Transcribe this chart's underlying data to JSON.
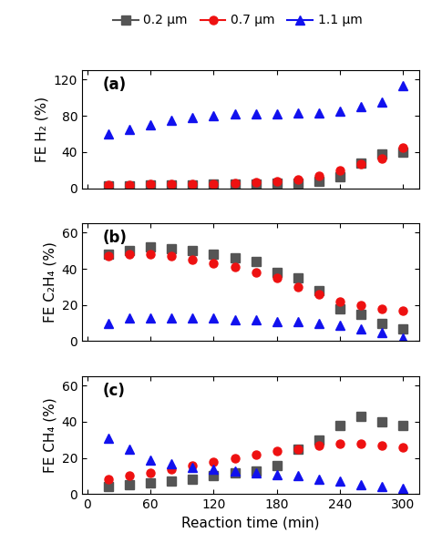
{
  "x_ticks": [
    0,
    60,
    120,
    180,
    240,
    300
  ],
  "xlabel": "Reaction time (min)",
  "panel_a": {
    "label": "(a)",
    "ylabel": "FE H₂ (%)",
    "ylim": [
      0,
      130
    ],
    "yticks": [
      0,
      40,
      80,
      120
    ],
    "gray_x": [
      20,
      40,
      60,
      80,
      100,
      120,
      140,
      160,
      180,
      200,
      220,
      240,
      260,
      280,
      300
    ],
    "gray_y": [
      3,
      3,
      4,
      4,
      4,
      5,
      5,
      5,
      6,
      6,
      8,
      13,
      28,
      38,
      40
    ],
    "red_x": [
      20,
      40,
      60,
      80,
      100,
      120,
      140,
      160,
      180,
      200,
      220,
      240,
      260,
      280,
      300
    ],
    "red_y": [
      4,
      4,
      5,
      5,
      5,
      5,
      6,
      7,
      8,
      10,
      14,
      20,
      27,
      33,
      45
    ],
    "blue_x": [
      20,
      40,
      60,
      80,
      100,
      120,
      140,
      160,
      180,
      200,
      220,
      240,
      260,
      280,
      300
    ],
    "blue_y": [
      60,
      65,
      70,
      75,
      78,
      80,
      82,
      82,
      82,
      83,
      83,
      85,
      90,
      95,
      113
    ]
  },
  "panel_b": {
    "label": "(b)",
    "ylabel": "FE C₂H₄ (%)",
    "ylim": [
      0,
      65
    ],
    "yticks": [
      0,
      20,
      40,
      60
    ],
    "gray_x": [
      20,
      40,
      60,
      80,
      100,
      120,
      140,
      160,
      180,
      200,
      220,
      240,
      260,
      280,
      300
    ],
    "gray_y": [
      48,
      50,
      52,
      51,
      50,
      48,
      46,
      44,
      38,
      35,
      28,
      18,
      15,
      10,
      7
    ],
    "red_x": [
      20,
      40,
      60,
      80,
      100,
      120,
      140,
      160,
      180,
      200,
      220,
      240,
      260,
      280,
      300
    ],
    "red_y": [
      47,
      48,
      48,
      47,
      45,
      43,
      41,
      38,
      35,
      30,
      26,
      22,
      20,
      18,
      17
    ],
    "blue_x": [
      20,
      40,
      60,
      80,
      100,
      120,
      140,
      160,
      180,
      200,
      220,
      240,
      260,
      280,
      300
    ],
    "blue_y": [
      10,
      13,
      13,
      13,
      13,
      13,
      12,
      12,
      11,
      11,
      10,
      9,
      7,
      5,
      2
    ]
  },
  "panel_c": {
    "label": "(c)",
    "ylabel": "FE CH₄ (%)",
    "ylim": [
      0,
      65
    ],
    "yticks": [
      0,
      20,
      40,
      60
    ],
    "gray_x": [
      20,
      40,
      60,
      80,
      100,
      120,
      140,
      160,
      180,
      200,
      220,
      240,
      260,
      280,
      300
    ],
    "gray_y": [
      4,
      5,
      6,
      7,
      8,
      10,
      12,
      13,
      16,
      25,
      30,
      38,
      43,
      40,
      38
    ],
    "red_x": [
      20,
      40,
      60,
      80,
      100,
      120,
      140,
      160,
      180,
      200,
      220,
      240,
      260,
      280,
      300
    ],
    "red_y": [
      8,
      10,
      12,
      14,
      16,
      18,
      20,
      22,
      24,
      25,
      27,
      28,
      28,
      27,
      26
    ],
    "blue_x": [
      20,
      40,
      60,
      80,
      100,
      120,
      140,
      160,
      180,
      200,
      220,
      240,
      260,
      280,
      300
    ],
    "blue_y": [
      31,
      25,
      19,
      17,
      15,
      14,
      13,
      12,
      11,
      10,
      8,
      7,
      5,
      4,
      3
    ]
  },
  "colors": {
    "gray": "#555555",
    "red": "#ee1111",
    "blue": "#1111ee"
  },
  "legend": {
    "labels": [
      "0.2 μm",
      "0.7 μm",
      "1.1 μm"
    ]
  }
}
